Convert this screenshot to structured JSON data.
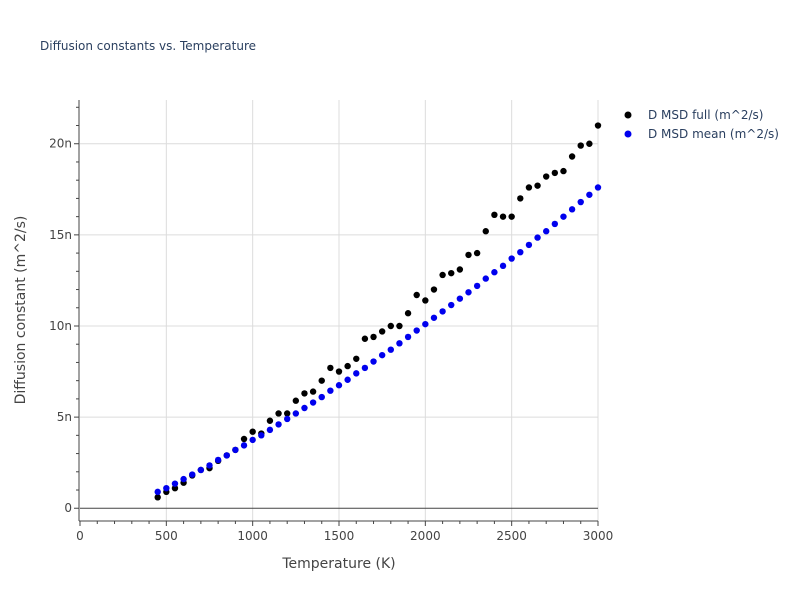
{
  "chart_data": {
    "type": "scatter",
    "title": "Diffusion constants vs. Temperature",
    "xlabel": "Temperature (K)",
    "ylabel": "Diffusion constant (m^2/s)",
    "xlim": [
      0,
      3000
    ],
    "ylim": [
      -0.7,
      22.4
    ],
    "x_ticks": [
      0,
      500,
      1000,
      1500,
      2000,
      2500,
      3000
    ],
    "x_tick_labels": [
      "0",
      "500",
      "1000",
      "1500",
      "2000",
      "2500",
      "3000"
    ],
    "y_ticks": [
      0,
      5,
      10,
      15,
      20
    ],
    "y_tick_labels": [
      "0",
      "5n",
      "10n",
      "15n",
      "20n"
    ],
    "grid": true,
    "legend_position": "top-right",
    "series": [
      {
        "name": "D MSD full (m^2/s)",
        "color": "#000000",
        "x": [
          450,
          500,
          550,
          600,
          650,
          700,
          750,
          800,
          850,
          900,
          950,
          1000,
          1050,
          1100,
          1150,
          1200,
          1250,
          1300,
          1350,
          1400,
          1450,
          1500,
          1550,
          1600,
          1650,
          1700,
          1750,
          1800,
          1850,
          1900,
          1950,
          2000,
          2050,
          2100,
          2150,
          2200,
          2250,
          2300,
          2350,
          2400,
          2450,
          2500,
          2550,
          2600,
          2650,
          2700,
          2750,
          2800,
          2850,
          2900,
          2950,
          3000
        ],
        "y": [
          0.6,
          0.9,
          1.1,
          1.4,
          1.8,
          2.1,
          2.2,
          2.6,
          2.9,
          3.2,
          3.8,
          4.2,
          4.1,
          4.8,
          5.2,
          5.2,
          5.9,
          6.3,
          6.4,
          7.0,
          7.7,
          7.5,
          7.8,
          8.2,
          9.3,
          9.4,
          9.7,
          10.0,
          10.0,
          10.7,
          11.7,
          11.4,
          12.0,
          12.8,
          12.9,
          13.1,
          13.9,
          14.0,
          15.2,
          16.1,
          16.0,
          16.0,
          17.0,
          17.6,
          17.7,
          18.2,
          18.4,
          18.5,
          19.3,
          19.9,
          20.0,
          21.0
        ]
      },
      {
        "name": "D MSD mean (m^2/s)",
        "color": "#0000ee",
        "x": [
          450,
          500,
          550,
          600,
          650,
          700,
          750,
          800,
          850,
          900,
          950,
          1000,
          1050,
          1100,
          1150,
          1200,
          1250,
          1300,
          1350,
          1400,
          1450,
          1500,
          1550,
          1600,
          1650,
          1700,
          1750,
          1800,
          1850,
          1900,
          1950,
          2000,
          2050,
          2100,
          2150,
          2200,
          2250,
          2300,
          2350,
          2400,
          2450,
          2500,
          2550,
          2600,
          2650,
          2700,
          2750,
          2800,
          2850,
          2900,
          2950,
          3000
        ],
        "y": [
          0.9,
          1.1,
          1.35,
          1.6,
          1.85,
          2.1,
          2.35,
          2.65,
          2.9,
          3.2,
          3.45,
          3.75,
          4.0,
          4.3,
          4.6,
          4.9,
          5.2,
          5.5,
          5.8,
          6.1,
          6.45,
          6.75,
          7.05,
          7.4,
          7.7,
          8.05,
          8.4,
          8.7,
          9.05,
          9.4,
          9.75,
          10.1,
          10.45,
          10.8,
          11.15,
          11.5,
          11.85,
          12.2,
          12.6,
          12.95,
          13.3,
          13.7,
          14.05,
          14.45,
          14.85,
          15.2,
          15.6,
          16.0,
          16.4,
          16.8,
          17.2,
          17.6
        ]
      }
    ]
  }
}
